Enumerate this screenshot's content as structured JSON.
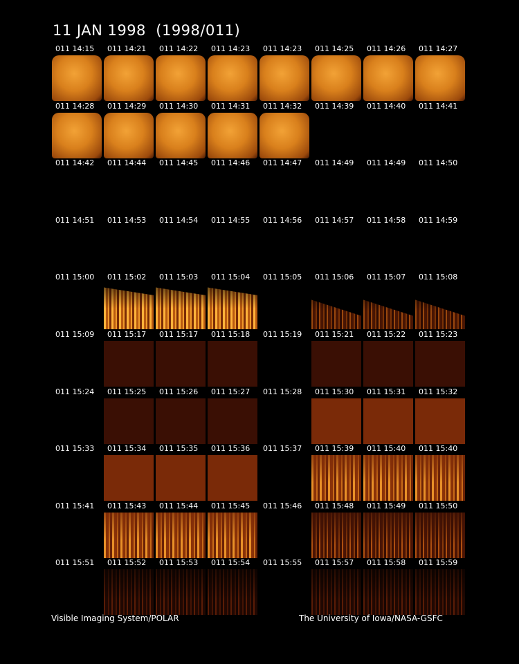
{
  "header": {
    "title": "11 JAN 1998  (1998/011)"
  },
  "frames": [
    "011 14:15",
    "011 14:21",
    "011 14:22",
    "011 14:23",
    "011 14:23",
    "011 14:25",
    "011 14:26",
    "011 14:27",
    "011 14:28",
    "011 14:29",
    "011 14:30",
    "011 14:31",
    "011 14:32",
    "011 14:39",
    "011 14:40",
    "011 14:41",
    "011 14:42",
    "011 14:44",
    "011 14:45",
    "011 14:46",
    "011 14:47",
    "011 14:49",
    "011 14:49",
    "011 14:50",
    "011 14:51",
    "011 14:53",
    "011 14:54",
    "011 14:55",
    "011 14:56",
    "011 14:57",
    "011 14:58",
    "011 14:59",
    "011 15:00",
    "011 15:02",
    "011 15:03",
    "011 15:04",
    "011 15:05",
    "011 15:06",
    "011 15:07",
    "011 15:08",
    "011 15:09",
    "011 15:17",
    "011 15:17",
    "011 15:18",
    "011 15:19",
    "011 15:21",
    "011 15:22",
    "011 15:23",
    "011 15:24",
    "011 15:25",
    "011 15:26",
    "011 15:27",
    "011 15:28",
    "011 15:30",
    "011 15:31",
    "011 15:32",
    "011 15:33",
    "011 15:34",
    "011 15:35",
    "011 15:36",
    "011 15:37",
    "011 15:39",
    "011 15:40",
    "011 15:40",
    "011 15:41",
    "011 15:43",
    "011 15:44",
    "011 15:45",
    "011 15:46",
    "011 15:48",
    "011 15:49",
    "011 15:50",
    "011 15:51",
    "011 15:52",
    "011 15:53",
    "011 15:54",
    "011 15:55",
    "011 15:57",
    "011 15:58",
    "011 15:59"
  ],
  "footer": {
    "left": "Visible Imaging System/POLAR",
    "right": "The University of Iowa/NASA-GSFC"
  }
}
